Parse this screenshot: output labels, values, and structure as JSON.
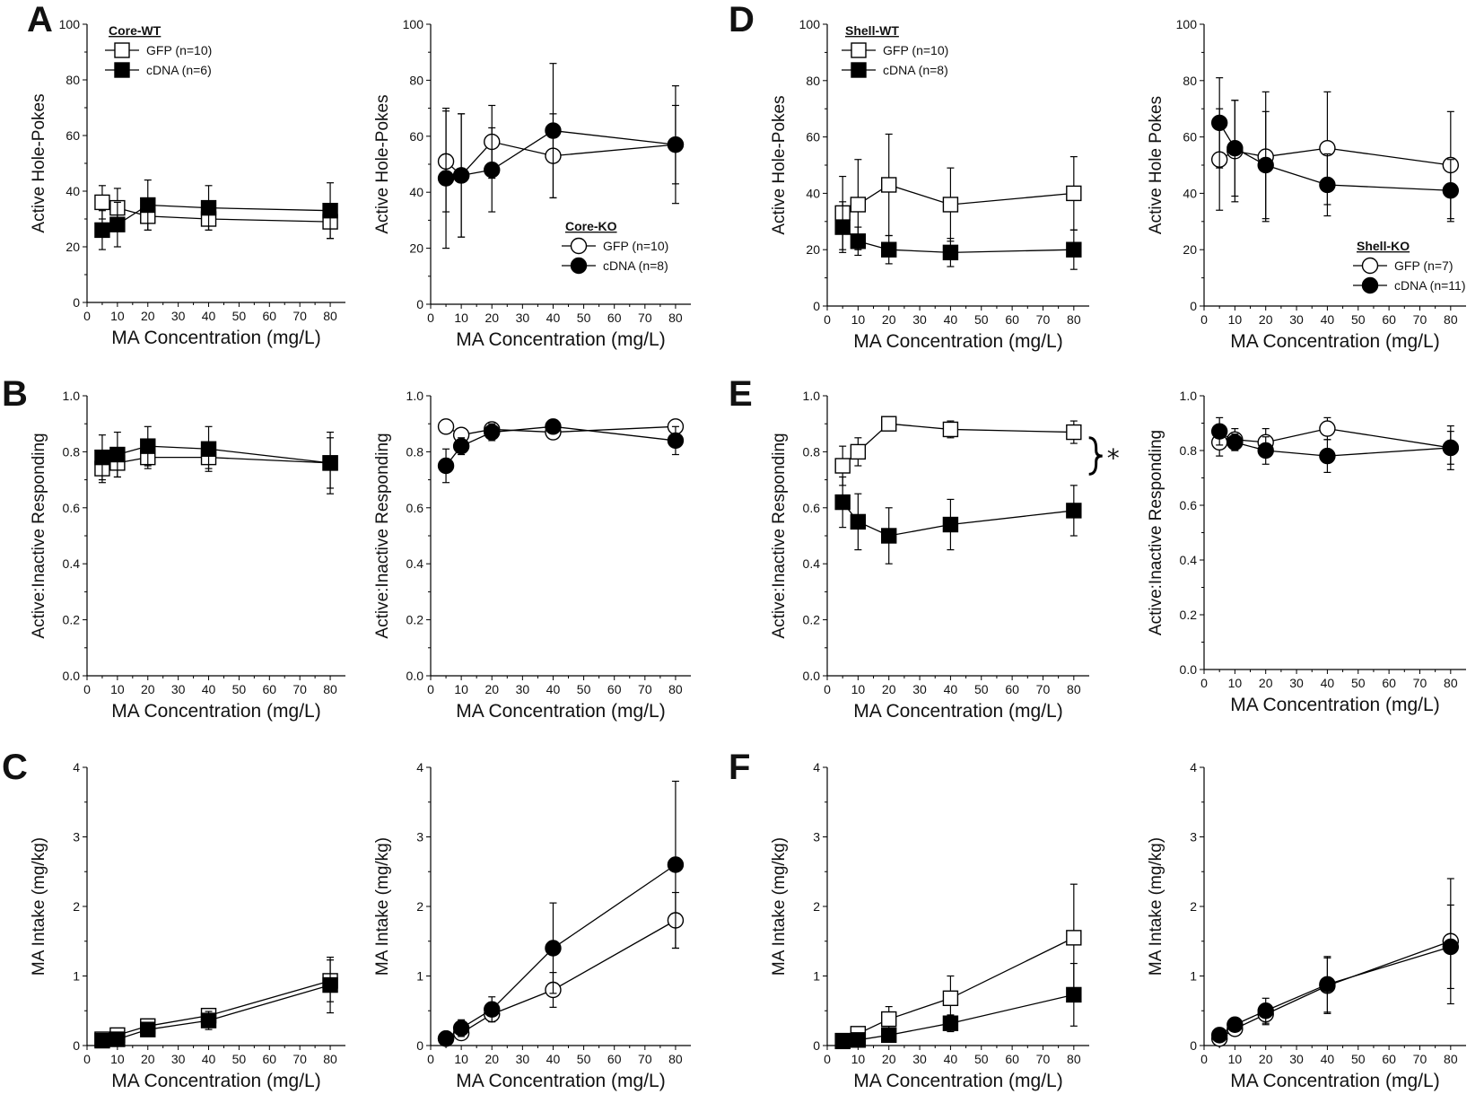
{
  "panel_labels": [
    "A",
    "B",
    "C",
    "D",
    "E",
    "F"
  ],
  "chart_data": [
    {
      "id": "A-left",
      "type": "line",
      "xlabel": "MA Concentration (mg/L)",
      "ylabel": "Active Hole-Pokes",
      "xlim": [
        0,
        85
      ],
      "ylim": [
        0,
        100
      ],
      "xticks": [
        0,
        10,
        20,
        30,
        40,
        50,
        60,
        70,
        80
      ],
      "yticks": [
        0,
        20,
        40,
        60,
        80,
        100
      ],
      "legend": {
        "title": "Core-WT",
        "position": "top-left"
      },
      "series": [
        {
          "name": "GFP (n=10)",
          "marker": "square-open",
          "x": [
            5,
            10,
            20,
            40,
            80
          ],
          "y": [
            36,
            34,
            31,
            30,
            29
          ],
          "err": [
            6,
            7,
            5,
            4,
            6
          ]
        },
        {
          "name": "cDNA (n=6)",
          "marker": "square-filled",
          "x": [
            5,
            10,
            20,
            40,
            80
          ],
          "y": [
            26,
            28,
            35,
            34,
            33
          ],
          "err": [
            7,
            8,
            9,
            8,
            10
          ]
        }
      ]
    },
    {
      "id": "A-right",
      "type": "line",
      "xlabel": "MA Concentration (mg/L)",
      "ylabel": "Active Hole-Pokes",
      "xlim": [
        0,
        85
      ],
      "ylim": [
        0,
        100
      ],
      "xticks": [
        0,
        10,
        20,
        30,
        40,
        50,
        60,
        70,
        80
      ],
      "yticks": [
        0,
        20,
        40,
        60,
        80,
        100
      ],
      "legend": {
        "title": "Core-KO",
        "position": "middle-right"
      },
      "series": [
        {
          "name": "GFP (n=10)",
          "marker": "circle-open",
          "x": [
            5,
            10,
            20,
            40,
            80
          ],
          "y": [
            51,
            46,
            58,
            53,
            57
          ],
          "err": [
            18,
            22,
            13,
            15,
            14
          ]
        },
        {
          "name": "cDNA (n=8)",
          "marker": "circle-filled",
          "x": [
            5,
            10,
            20,
            40,
            80
          ],
          "y": [
            45,
            46,
            48,
            62,
            57
          ],
          "err": [
            25,
            22,
            15,
            24,
            21
          ]
        }
      ]
    },
    {
      "id": "D-left",
      "type": "line",
      "xlabel": "MA Concentration (mg/L)",
      "ylabel": "Active Hole-Pokes",
      "xlim": [
        0,
        85
      ],
      "ylim": [
        0,
        100
      ],
      "xticks": [
        0,
        10,
        20,
        30,
        40,
        50,
        60,
        70,
        80
      ],
      "yticks": [
        0,
        20,
        40,
        60,
        80,
        100
      ],
      "legend": {
        "title": "Shell-WT",
        "position": "top-left"
      },
      "series": [
        {
          "name": "GFP (n=10)",
          "marker": "square-open",
          "x": [
            5,
            10,
            20,
            40,
            80
          ],
          "y": [
            33,
            36,
            43,
            36,
            40
          ],
          "err": [
            13,
            16,
            18,
            13,
            13
          ]
        },
        {
          "name": "cDNA (n=8)",
          "marker": "square-filled",
          "x": [
            5,
            10,
            20,
            40,
            80
          ],
          "y": [
            28,
            23,
            20,
            19,
            20
          ],
          "err": [
            9,
            5,
            5,
            5,
            7
          ]
        }
      ]
    },
    {
      "id": "D-right",
      "type": "line",
      "xlabel": "MA Concentration (mg/L)",
      "ylabel": "Active Hole Pokes",
      "xlim": [
        0,
        85
      ],
      "ylim": [
        0,
        100
      ],
      "xticks": [
        0,
        10,
        20,
        30,
        40,
        50,
        60,
        70,
        80
      ],
      "yticks": [
        0,
        20,
        40,
        60,
        80,
        100
      ],
      "legend": {
        "title": "Shell-KO",
        "position": "bottom-right"
      },
      "series": [
        {
          "name": "GFP (n=7)",
          "marker": "circle-open",
          "x": [
            5,
            10,
            20,
            40,
            80
          ],
          "y": [
            52,
            55,
            53,
            56,
            50
          ],
          "err": [
            18,
            18,
            23,
            20,
            19
          ]
        },
        {
          "name": "cDNA (n=11)",
          "marker": "circle-filled",
          "x": [
            5,
            10,
            20,
            40,
            80
          ],
          "y": [
            65,
            56,
            50,
            43,
            41
          ],
          "err": [
            16,
            17,
            19,
            11,
            11
          ]
        }
      ]
    },
    {
      "id": "B-left",
      "type": "line",
      "xlabel": "MA Concentration (mg/L)",
      "ylabel": "Active:Inactive Responding",
      "xlim": [
        0,
        85
      ],
      "ylim": [
        0,
        1.0
      ],
      "xticks": [
        0,
        10,
        20,
        30,
        40,
        50,
        60,
        70,
        80
      ],
      "yticks": [
        0.0,
        0.2,
        0.4,
        0.6,
        0.8,
        1.0
      ],
      "series": [
        {
          "name": "GFP",
          "marker": "square-open",
          "x": [
            5,
            10,
            20,
            40,
            80
          ],
          "y": [
            0.74,
            0.76,
            0.78,
            0.78,
            0.76
          ],
          "err": [
            0.05,
            0.05,
            0.04,
            0.04,
            0.09
          ]
        },
        {
          "name": "cDNA",
          "marker": "square-filled",
          "x": [
            5,
            10,
            20,
            40,
            80
          ],
          "y": [
            0.78,
            0.79,
            0.82,
            0.81,
            0.76
          ],
          "err": [
            0.08,
            0.08,
            0.07,
            0.08,
            0.11
          ]
        }
      ]
    },
    {
      "id": "B-right",
      "type": "line",
      "xlabel": "MA Concentration (mg/L)",
      "ylabel": "Active:Inactive Responding",
      "xlim": [
        0,
        85
      ],
      "ylim": [
        0,
        1.0
      ],
      "xticks": [
        0,
        10,
        20,
        30,
        40,
        50,
        60,
        70,
        80
      ],
      "yticks": [
        0.0,
        0.2,
        0.4,
        0.6,
        0.8,
        1.0
      ],
      "series": [
        {
          "name": "GFP",
          "marker": "circle-open",
          "x": [
            5,
            10,
            20,
            40,
            80
          ],
          "y": [
            0.89,
            0.86,
            0.88,
            0.87,
            0.89
          ],
          "err": [
            0.02,
            0.02,
            0.02,
            0.02,
            0.02
          ]
        },
        {
          "name": "cDNA",
          "marker": "circle-filled",
          "x": [
            5,
            10,
            20,
            40,
            80
          ],
          "y": [
            0.75,
            0.82,
            0.87,
            0.89,
            0.84
          ],
          "err": [
            0.06,
            0.03,
            0.03,
            0.02,
            0.05
          ]
        }
      ]
    },
    {
      "id": "E-left",
      "type": "line",
      "xlabel": "MA Concentration (mg/L)",
      "ylabel": "Active:Inactive Responding",
      "xlim": [
        0,
        85
      ],
      "ylim": [
        0,
        1.0
      ],
      "xticks": [
        0,
        10,
        20,
        30,
        40,
        50,
        60,
        70,
        80
      ],
      "yticks": [
        0.0,
        0.2,
        0.4,
        0.6,
        0.8,
        1.0
      ],
      "annotation": "*",
      "series": [
        {
          "name": "GFP",
          "marker": "square-open",
          "x": [
            5,
            10,
            20,
            40,
            80
          ],
          "y": [
            0.75,
            0.8,
            0.9,
            0.88,
            0.87
          ],
          "err": [
            0.07,
            0.05,
            0.02,
            0.03,
            0.04
          ]
        },
        {
          "name": "cDNA",
          "marker": "square-filled",
          "x": [
            5,
            10,
            20,
            40,
            80
          ],
          "y": [
            0.62,
            0.55,
            0.5,
            0.54,
            0.59
          ],
          "err": [
            0.09,
            0.1,
            0.1,
            0.09,
            0.09
          ]
        }
      ]
    },
    {
      "id": "E-right",
      "type": "line",
      "xlabel": "MA Concentration (mg/L)",
      "ylabel": "Active:Inactive Responding",
      "xlim": [
        0,
        85
      ],
      "ylim": [
        0,
        1.0
      ],
      "xticks": [
        0,
        10,
        20,
        30,
        40,
        50,
        60,
        70,
        80
      ],
      "yticks": [
        0.0,
        0.2,
        0.4,
        0.6,
        0.8,
        1.0
      ],
      "series": [
        {
          "name": "GFP",
          "marker": "circle-open",
          "x": [
            5,
            10,
            20,
            40,
            80
          ],
          "y": [
            0.83,
            0.84,
            0.83,
            0.88,
            0.81
          ],
          "err": [
            0.05,
            0.04,
            0.05,
            0.04,
            0.06
          ]
        },
        {
          "name": "cDNA",
          "marker": "circle-filled",
          "x": [
            5,
            10,
            20,
            40,
            80
          ],
          "y": [
            0.87,
            0.83,
            0.8,
            0.78,
            0.81
          ],
          "err": [
            0.05,
            0.03,
            0.05,
            0.06,
            0.08
          ]
        }
      ]
    },
    {
      "id": "C-left",
      "type": "line",
      "xlabel": "MA Concentration (mg/L)",
      "ylabel": "MA Intake (mg/kg)",
      "xlim": [
        0,
        85
      ],
      "ylim": [
        0,
        4
      ],
      "xticks": [
        0,
        10,
        20,
        30,
        40,
        50,
        60,
        70,
        80
      ],
      "yticks": [
        0,
        1,
        2,
        3,
        4
      ],
      "series": [
        {
          "name": "GFP",
          "marker": "square-open",
          "x": [
            5,
            10,
            20,
            40,
            80
          ],
          "y": [
            0.09,
            0.15,
            0.28,
            0.43,
            0.93
          ],
          "err": [
            0.03,
            0.04,
            0.05,
            0.06,
            0.3
          ]
        },
        {
          "name": "cDNA",
          "marker": "square-filled",
          "x": [
            5,
            10,
            20,
            40,
            80
          ],
          "y": [
            0.07,
            0.09,
            0.23,
            0.36,
            0.87
          ],
          "err": [
            0.03,
            0.04,
            0.07,
            0.13,
            0.4
          ]
        }
      ]
    },
    {
      "id": "C-right",
      "type": "line",
      "xlabel": "MA Concentration (mg/L)",
      "ylabel": "MA Intake (mg/kg)",
      "xlim": [
        0,
        85
      ],
      "ylim": [
        0,
        4
      ],
      "xticks": [
        0,
        10,
        20,
        30,
        40,
        50,
        60,
        70,
        80
      ],
      "yticks": [
        0,
        1,
        2,
        3,
        4
      ],
      "series": [
        {
          "name": "GFP",
          "marker": "circle-open",
          "x": [
            5,
            10,
            20,
            40,
            80
          ],
          "y": [
            0.1,
            0.18,
            0.45,
            0.8,
            1.8
          ],
          "err": [
            0.03,
            0.05,
            0.1,
            0.25,
            0.4
          ]
        },
        {
          "name": "cDNA",
          "marker": "circle-filled",
          "x": [
            5,
            10,
            20,
            40,
            80
          ],
          "y": [
            0.1,
            0.25,
            0.52,
            1.4,
            2.6
          ],
          "err": [
            0.03,
            0.12,
            0.18,
            0.65,
            1.2
          ]
        }
      ]
    },
    {
      "id": "F-left",
      "type": "line",
      "xlabel": "MA Concentration (mg/L)",
      "ylabel": "MA Intake (mg/kg)",
      "xlim": [
        0,
        85
      ],
      "ylim": [
        0,
        4
      ],
      "xticks": [
        0,
        10,
        20,
        30,
        40,
        50,
        60,
        70,
        80
      ],
      "yticks": [
        0,
        1,
        2,
        3,
        4
      ],
      "series": [
        {
          "name": "GFP",
          "marker": "square-open",
          "x": [
            5,
            10,
            20,
            40,
            80
          ],
          "y": [
            0.07,
            0.17,
            0.38,
            0.68,
            1.55
          ],
          "err": [
            0.03,
            0.06,
            0.18,
            0.32,
            0.77
          ]
        },
        {
          "name": "cDNA",
          "marker": "square-filled",
          "x": [
            5,
            10,
            20,
            40,
            80
          ],
          "y": [
            0.06,
            0.08,
            0.15,
            0.32,
            0.73
          ],
          "err": [
            0.02,
            0.03,
            0.05,
            0.12,
            0.45
          ]
        }
      ]
    },
    {
      "id": "F-right",
      "type": "line",
      "xlabel": "MA Concentration (mg/L)",
      "ylabel": "MA Intake (mg/kg)",
      "xlim": [
        0,
        85
      ],
      "ylim": [
        0,
        4
      ],
      "xticks": [
        0,
        10,
        20,
        30,
        40,
        50,
        60,
        70,
        80
      ],
      "yticks": [
        0,
        1,
        2,
        3,
        4
      ],
      "series": [
        {
          "name": "GFP",
          "marker": "circle-open",
          "x": [
            5,
            10,
            20,
            40,
            80
          ],
          "y": [
            0.1,
            0.24,
            0.45,
            0.86,
            1.5
          ],
          "err": [
            0.03,
            0.06,
            0.15,
            0.4,
            0.9
          ]
        },
        {
          "name": "cDNA",
          "marker": "circle-filled",
          "x": [
            5,
            10,
            20,
            40,
            80
          ],
          "y": [
            0.15,
            0.3,
            0.5,
            0.88,
            1.42
          ],
          "err": [
            0.04,
            0.06,
            0.18,
            0.4,
            0.6
          ]
        }
      ]
    }
  ]
}
